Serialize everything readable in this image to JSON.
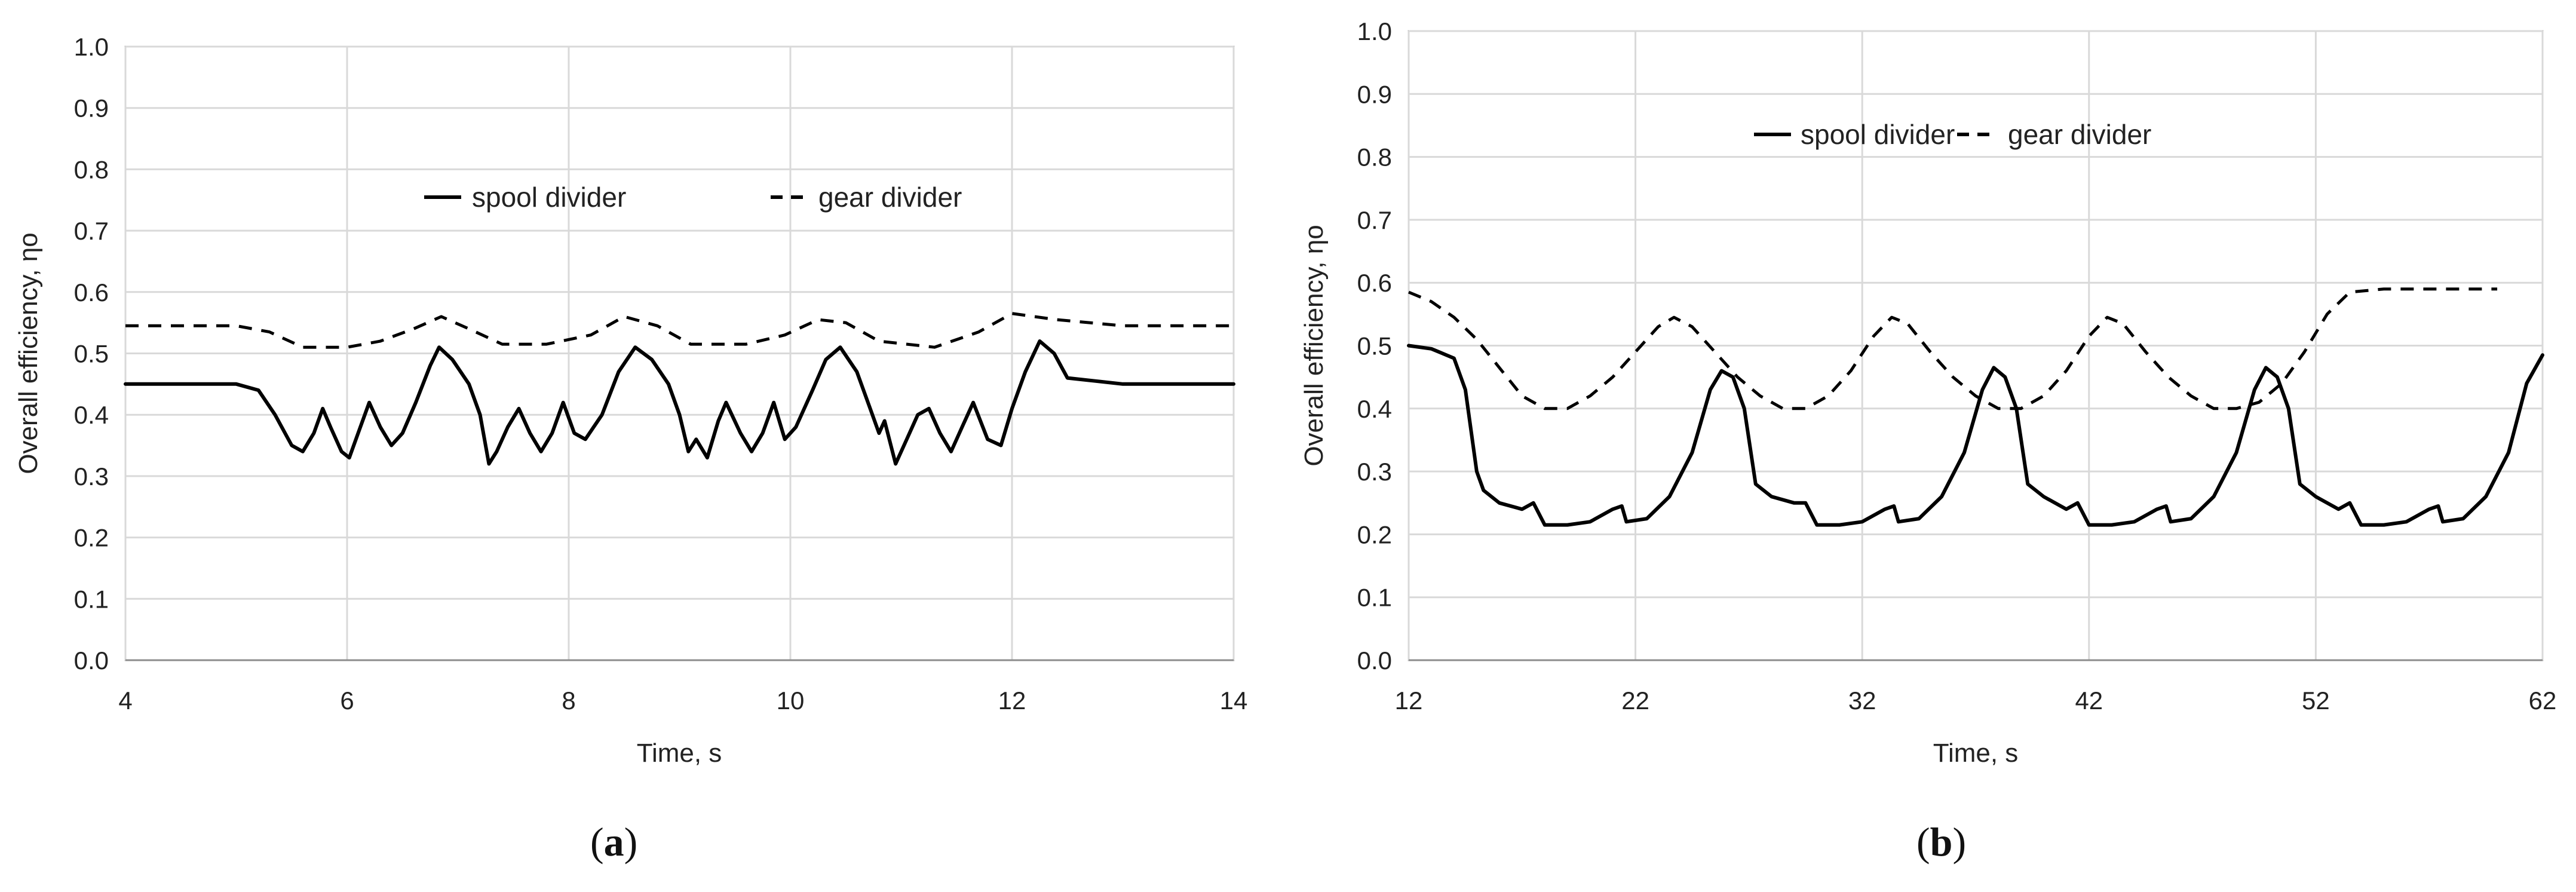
{
  "chart_data": [
    {
      "type": "line",
      "panel_label": "a",
      "xlabel": "Time, s",
      "ylabel": "Overall efficiency, ηo",
      "xlim": [
        4,
        14
      ],
      "ylim": [
        0,
        1
      ],
      "x_ticks": [
        4,
        6,
        8,
        10,
        12,
        14
      ],
      "y_ticks": [
        "0.0",
        "0.1",
        "0.2",
        "0.3",
        "0.4",
        "0.5",
        "0.6",
        "0.7",
        "0.8",
        "0.9",
        "1.0"
      ],
      "grid": true,
      "legend": "upper-center, inside plot, single row",
      "series": [
        {
          "name": "spool divider",
          "style": "solid",
          "color": "#000000",
          "points": [
            [
              4,
              0.45
            ],
            [
              4.5,
              0.45
            ],
            [
              5,
              0.45
            ],
            [
              5.2,
              0.44
            ],
            [
              5.35,
              0.4
            ],
            [
              5.5,
              0.35
            ],
            [
              5.6,
              0.34
            ],
            [
              5.7,
              0.37
            ],
            [
              5.78,
              0.41
            ],
            [
              5.85,
              0.38
            ],
            [
              5.95,
              0.34
            ],
            [
              6.02,
              0.33
            ],
            [
              6.1,
              0.37
            ],
            [
              6.2,
              0.42
            ],
            [
              6.3,
              0.38
            ],
            [
              6.4,
              0.35
            ],
            [
              6.5,
              0.37
            ],
            [
              6.62,
              0.42
            ],
            [
              6.75,
              0.48
            ],
            [
              6.83,
              0.51
            ],
            [
              6.95,
              0.49
            ],
            [
              7.1,
              0.45
            ],
            [
              7.2,
              0.4
            ],
            [
              7.28,
              0.32
            ],
            [
              7.35,
              0.34
            ],
            [
              7.45,
              0.38
            ],
            [
              7.55,
              0.41
            ],
            [
              7.65,
              0.37
            ],
            [
              7.75,
              0.34
            ],
            [
              7.85,
              0.37
            ],
            [
              7.95,
              0.42
            ],
            [
              8.05,
              0.37
            ],
            [
              8.15,
              0.36
            ],
            [
              8.3,
              0.4
            ],
            [
              8.45,
              0.47
            ],
            [
              8.6,
              0.51
            ],
            [
              8.75,
              0.49
            ],
            [
              8.9,
              0.45
            ],
            [
              9.0,
              0.4
            ],
            [
              9.08,
              0.34
            ],
            [
              9.15,
              0.36
            ],
            [
              9.25,
              0.33
            ],
            [
              9.35,
              0.39
            ],
            [
              9.42,
              0.42
            ],
            [
              9.55,
              0.37
            ],
            [
              9.65,
              0.34
            ],
            [
              9.75,
              0.37
            ],
            [
              9.85,
              0.42
            ],
            [
              9.95,
              0.36
            ],
            [
              10.05,
              0.38
            ],
            [
              10.2,
              0.44
            ],
            [
              10.32,
              0.49
            ],
            [
              10.45,
              0.51
            ],
            [
              10.6,
              0.47
            ],
            [
              10.72,
              0.41
            ],
            [
              10.8,
              0.37
            ],
            [
              10.85,
              0.39
            ],
            [
              10.95,
              0.32
            ],
            [
              11.05,
              0.36
            ],
            [
              11.15,
              0.4
            ],
            [
              11.25,
              0.41
            ],
            [
              11.35,
              0.37
            ],
            [
              11.45,
              0.34
            ],
            [
              11.55,
              0.38
            ],
            [
              11.65,
              0.42
            ],
            [
              11.78,
              0.36
            ],
            [
              11.9,
              0.35
            ],
            [
              12.0,
              0.41
            ],
            [
              12.12,
              0.47
            ],
            [
              12.25,
              0.52
            ],
            [
              12.38,
              0.5
            ],
            [
              12.5,
              0.46
            ],
            [
              12.75,
              0.455
            ],
            [
              13,
              0.45
            ],
            [
              14,
              0.45
            ]
          ]
        },
        {
          "name": "gear divider",
          "style": "dashed",
          "color": "#000000",
          "points": [
            [
              4,
              0.545
            ],
            [
              5,
              0.545
            ],
            [
              5.3,
              0.535
            ],
            [
              5.6,
              0.51
            ],
            [
              6.0,
              0.51
            ],
            [
              6.3,
              0.52
            ],
            [
              6.6,
              0.54
            ],
            [
              6.85,
              0.56
            ],
            [
              7.1,
              0.54
            ],
            [
              7.4,
              0.515
            ],
            [
              7.8,
              0.515
            ],
            [
              8.2,
              0.53
            ],
            [
              8.5,
              0.56
            ],
            [
              8.8,
              0.545
            ],
            [
              9.1,
              0.515
            ],
            [
              9.6,
              0.515
            ],
            [
              9.95,
              0.53
            ],
            [
              10.25,
              0.555
            ],
            [
              10.5,
              0.55
            ],
            [
              10.8,
              0.52
            ],
            [
              11.3,
              0.51
            ],
            [
              11.7,
              0.535
            ],
            [
              12.0,
              0.565
            ],
            [
              12.4,
              0.555
            ],
            [
              13,
              0.545
            ],
            [
              14,
              0.545
            ]
          ]
        }
      ]
    },
    {
      "type": "line",
      "panel_label": "b",
      "xlabel": "Time, s",
      "ylabel": "Overall efficiency, ηo",
      "xlim": [
        12,
        62
      ],
      "ylim": [
        0,
        1
      ],
      "x_ticks": [
        12,
        22,
        32,
        42,
        52,
        62
      ],
      "y_ticks": [
        "0.0",
        "0.1",
        "0.2",
        "0.3",
        "0.4",
        "0.5",
        "0.6",
        "0.7",
        "0.8",
        "0.9",
        "1.0"
      ],
      "grid": true,
      "legend": "upper-center, inside plot, single row",
      "series": [
        {
          "name": "spool divider",
          "style": "solid",
          "color": "#000000",
          "points": [
            [
              12,
              0.5
            ],
            [
              13,
              0.495
            ],
            [
              14,
              0.48
            ],
            [
              14.5,
              0.43
            ],
            [
              15,
              0.3
            ],
            [
              15.3,
              0.27
            ],
            [
              16,
              0.25
            ],
            [
              17,
              0.24
            ],
            [
              17.5,
              0.25
            ],
            [
              18,
              0.215
            ],
            [
              19,
              0.215
            ],
            [
              20,
              0.22
            ],
            [
              21,
              0.24
            ],
            [
              21.4,
              0.245
            ],
            [
              21.6,
              0.22
            ],
            [
              22.5,
              0.225
            ],
            [
              23.5,
              0.26
            ],
            [
              24.5,
              0.33
            ],
            [
              25.3,
              0.43
            ],
            [
              25.8,
              0.46
            ],
            [
              26.3,
              0.45
            ],
            [
              26.8,
              0.4
            ],
            [
              27.3,
              0.28
            ],
            [
              28,
              0.26
            ],
            [
              29,
              0.25
            ],
            [
              29.5,
              0.25
            ],
            [
              30,
              0.215
            ],
            [
              31,
              0.215
            ],
            [
              32,
              0.22
            ],
            [
              33,
              0.24
            ],
            [
              33.4,
              0.245
            ],
            [
              33.6,
              0.22
            ],
            [
              34.5,
              0.225
            ],
            [
              35.5,
              0.26
            ],
            [
              36.5,
              0.33
            ],
            [
              37.3,
              0.43
            ],
            [
              37.8,
              0.465
            ],
            [
              38.3,
              0.45
            ],
            [
              38.8,
              0.4
            ],
            [
              39.3,
              0.28
            ],
            [
              40,
              0.26
            ],
            [
              41,
              0.24
            ],
            [
              41.5,
              0.25
            ],
            [
              42,
              0.215
            ],
            [
              43,
              0.215
            ],
            [
              44,
              0.22
            ],
            [
              45,
              0.24
            ],
            [
              45.4,
              0.245
            ],
            [
              45.6,
              0.22
            ],
            [
              46.5,
              0.225
            ],
            [
              47.5,
              0.26
            ],
            [
              48.5,
              0.33
            ],
            [
              49.3,
              0.43
            ],
            [
              49.8,
              0.465
            ],
            [
              50.3,
              0.45
            ],
            [
              50.8,
              0.4
            ],
            [
              51.3,
              0.28
            ],
            [
              52,
              0.26
            ],
            [
              53,
              0.24
            ],
            [
              53.5,
              0.25
            ],
            [
              54,
              0.215
            ],
            [
              55,
              0.215
            ],
            [
              56,
              0.22
            ],
            [
              57,
              0.24
            ],
            [
              57.4,
              0.245
            ],
            [
              57.6,
              0.22
            ],
            [
              58.5,
              0.225
            ],
            [
              59.5,
              0.26
            ],
            [
              60.5,
              0.33
            ],
            [
              61.3,
              0.44
            ],
            [
              62,
              0.485
            ]
          ]
        },
        {
          "name": "gear divider",
          "style": "dashed",
          "color": "#000000",
          "points": [
            [
              12,
              0.585
            ],
            [
              13,
              0.57
            ],
            [
              14,
              0.545
            ],
            [
              15,
              0.51
            ],
            [
              16,
              0.465
            ],
            [
              17,
              0.42
            ],
            [
              18,
              0.4
            ],
            [
              19,
              0.4
            ],
            [
              20,
              0.42
            ],
            [
              21,
              0.45
            ],
            [
              22,
              0.49
            ],
            [
              23,
              0.53
            ],
            [
              23.7,
              0.545
            ],
            [
              24.5,
              0.53
            ],
            [
              25.5,
              0.49
            ],
            [
              26.5,
              0.45
            ],
            [
              27.5,
              0.42
            ],
            [
              28.5,
              0.4
            ],
            [
              29.5,
              0.4
            ],
            [
              30.5,
              0.42
            ],
            [
              31.5,
              0.46
            ],
            [
              32.5,
              0.515
            ],
            [
              33.3,
              0.545
            ],
            [
              34,
              0.535
            ],
            [
              35,
              0.49
            ],
            [
              36,
              0.45
            ],
            [
              37,
              0.42
            ],
            [
              38,
              0.4
            ],
            [
              39,
              0.4
            ],
            [
              40,
              0.42
            ],
            [
              41,
              0.46
            ],
            [
              42,
              0.515
            ],
            [
              42.8,
              0.545
            ],
            [
              43.5,
              0.535
            ],
            [
              44.5,
              0.49
            ],
            [
              45.5,
              0.45
            ],
            [
              46.5,
              0.42
            ],
            [
              47.5,
              0.4
            ],
            [
              48.5,
              0.4
            ],
            [
              49.5,
              0.41
            ],
            [
              50.5,
              0.44
            ],
            [
              51.5,
              0.49
            ],
            [
              52.5,
              0.55
            ],
            [
              53.5,
              0.585
            ],
            [
              55,
              0.59
            ],
            [
              60,
              0.59
            ]
          ]
        }
      ]
    }
  ],
  "captions": {
    "a": "a",
    "b": "b"
  }
}
